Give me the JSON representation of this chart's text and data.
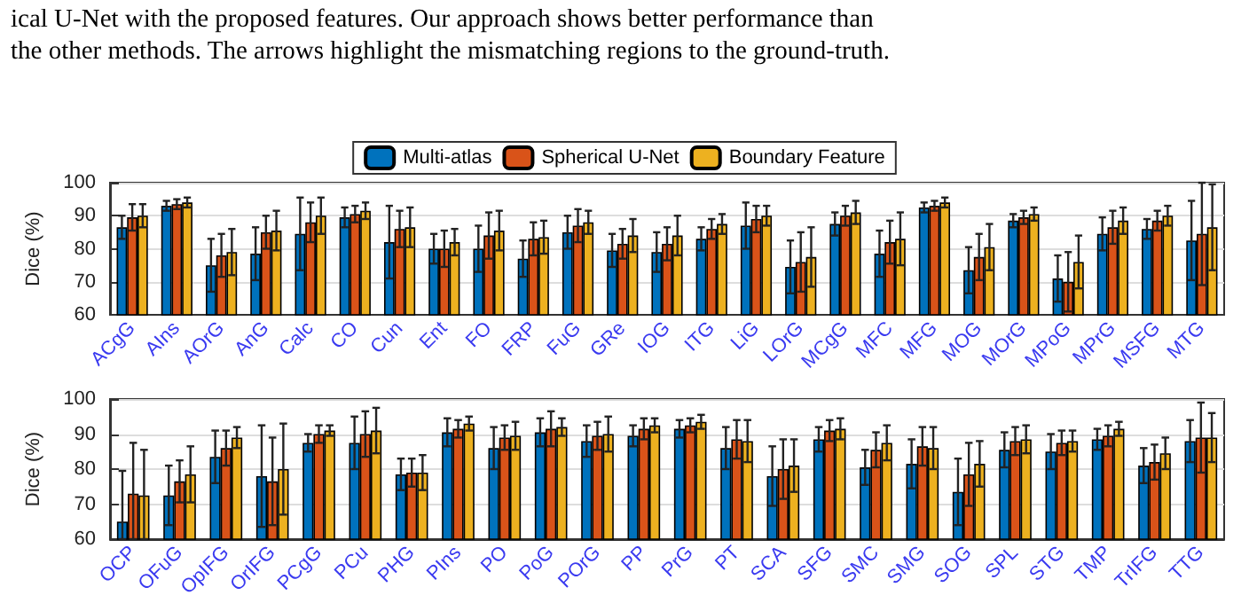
{
  "chart_data": [
    {
      "type": "bar",
      "annotations": [
        "ical U-Net with the proposed features. Our approach shows better performance than",
        "the other methods. The arrows highlight the mismatching regions to the ground-truth."
      ],
      "ylabel": "Dice (%)",
      "ylim": [
        60,
        100
      ],
      "yticks": [
        60,
        70,
        80,
        90,
        100
      ],
      "grid": "y",
      "legend": "top",
      "categories": [
        "ACgG",
        "AIns",
        "AOrG",
        "AnG",
        "Calc",
        "CO",
        "Cun",
        "Ent",
        "FO",
        "FRP",
        "FuG",
        "GRe",
        "IOG",
        "ITG",
        "LiG",
        "LOrG",
        "MCgG",
        "MFC",
        "MFG",
        "MOG",
        "MOrG",
        "MPoG",
        "MPrG",
        "MSFG",
        "MTG"
      ],
      "series": [
        {
          "name": "Multi-atlas",
          "color": "#0072bd",
          "values": [
            86.5,
            93,
            75,
            78.5,
            84.5,
            89.5,
            82,
            80,
            80,
            77,
            85,
            79.5,
            79,
            83,
            87,
            74.5,
            87.5,
            78.5,
            92.5,
            73.5,
            88.5,
            71,
            84.5,
            86,
            82.5
          ],
          "errors": [
            3.5,
            1.5,
            8,
            8,
            11,
            3,
            11,
            4.5,
            7,
            5.5,
            5,
            5,
            6,
            3.5,
            7,
            8,
            3.5,
            7,
            1.5,
            7,
            2,
            7,
            5,
            3,
            12
          ]
        },
        {
          "name": "Spherical U-Net",
          "color": "#d95319",
          "values": [
            89.5,
            93.5,
            78,
            85,
            88,
            90.5,
            86,
            80,
            84,
            83,
            87,
            81.5,
            81.5,
            86,
            89,
            76,
            90,
            82,
            93,
            77.5,
            89.5,
            70,
            86.5,
            88.5,
            84.5
          ],
          "errors": [
            4,
            1.5,
            6.5,
            5,
            6,
            2.5,
            5.5,
            5.5,
            7,
            5,
            5,
            4.5,
            5,
            3,
            4,
            9,
            3,
            6.5,
            1.5,
            7,
            2,
            9,
            5,
            3,
            15.5
          ]
        },
        {
          "name": "Boundary Feature",
          "color": "#edb120",
          "values": [
            90,
            94,
            79,
            85.5,
            90,
            91.5,
            86.5,
            82,
            85.5,
            83.5,
            88,
            84,
            84,
            87.5,
            90,
            77.5,
            91,
            83,
            94,
            80.5,
            90.5,
            76,
            88.5,
            90,
            86.5
          ],
          "errors": [
            3.5,
            1.5,
            7,
            6,
            5.5,
            2.5,
            6,
            4,
            6,
            5,
            3.5,
            5,
            6,
            3,
            3,
            9,
            3.5,
            8,
            1.5,
            7,
            2,
            8,
            4,
            3,
            13
          ]
        }
      ]
    },
    {
      "type": "bar",
      "ylabel": "Dice (%)",
      "ylim": [
        60,
        100
      ],
      "yticks": [
        60,
        70,
        80,
        90,
        100
      ],
      "grid": "y",
      "categories": [
        "OCP",
        "OFuG",
        "OpIFG",
        "OrIFG",
        "PCgG",
        "PCu",
        "PHG",
        "PIns",
        "PO",
        "PoG",
        "POrG",
        "PP",
        "PrG",
        "PT",
        "SCA",
        "SFG",
        "SMC",
        "SMG",
        "SOG",
        "SPL",
        "STG",
        "TMP",
        "TrIFG",
        "TTG"
      ],
      "series": [
        {
          "color": "#0072bd",
          "values": [
            65,
            72.5,
            83.5,
            78,
            87.5,
            87.5,
            78.5,
            90.5,
            86,
            90.5,
            88,
            89.5,
            91.5,
            86,
            78,
            88.5,
            80.5,
            81.5,
            73.5,
            85.5,
            85,
            88.5,
            81,
            88
          ],
          "errors": [
            [
              60,
              79.5
            ],
            8.5,
            7.5,
            14.5,
            2.5,
            7.5,
            4.5,
            4,
            6,
            4,
            4.5,
            3,
            2.5,
            6,
            8.5,
            3.5,
            5,
            7,
            9.5,
            5,
            5,
            3,
            5,
            6
          ]
        },
        {
          "color": "#d95319",
          "values": [
            73,
            76.5,
            86,
            76.5,
            90,
            90,
            79,
            91.5,
            89,
            91.5,
            89.5,
            91.5,
            92.5,
            88.5,
            80,
            91,
            85.5,
            86.5,
            78.5,
            88,
            87.5,
            89.5,
            82,
            89
          ],
          "errors": [
            [
              60,
              87.5
            ],
            6,
            5,
            12.5,
            2.5,
            6.5,
            4,
            2.5,
            3.5,
            5,
            4,
            3,
            2,
            5.5,
            8.5,
            3,
            5,
            5.5,
            9,
            4,
            3.5,
            3,
            5,
            10
          ]
        },
        {
          "color": "#edb120",
          "values": [
            72.5,
            78.5,
            89,
            80,
            91,
            91,
            79,
            93,
            89.5,
            92,
            90,
            92.5,
            93.5,
            88,
            81,
            91.5,
            87.5,
            86,
            81.5,
            88.5,
            88,
            91.5,
            84.5,
            89
          ],
          "errors": [
            [
              60,
              85.5
            ],
            8,
            3,
            13,
            1.5,
            6.5,
            5,
            2,
            4,
            2.5,
            5,
            2,
            2,
            6,
            7.5,
            3,
            5,
            6,
            6.5,
            4,
            3,
            2,
            4.5,
            7
          ]
        }
      ]
    }
  ]
}
